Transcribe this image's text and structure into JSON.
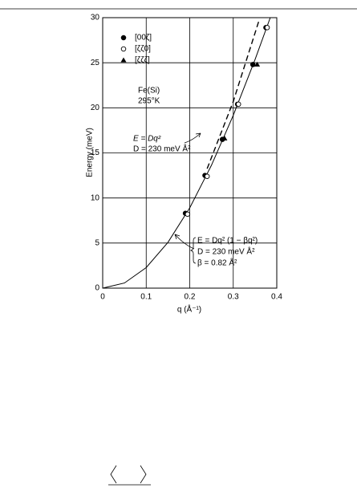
{
  "chart_data": {
    "type": "scatter",
    "xlabel": "q (Å⁻¹)",
    "ylabel": "Energy (meV)",
    "xlim": [
      0,
      0.4
    ],
    "ylim": [
      0,
      30
    ],
    "xticks": [
      0,
      0.1,
      0.2,
      0.3,
      0.4
    ],
    "yticks": [
      0,
      5,
      10,
      15,
      20,
      25,
      30
    ],
    "grid": true,
    "color": "#000000",
    "series": [
      {
        "name": "[00ζ]",
        "marker": "filled-circle",
        "x": [
          0.19,
          0.235,
          0.275,
          0.31,
          0.345,
          0.375
        ],
        "values": [
          8.3,
          12.5,
          16.5,
          20.4,
          24.8,
          28.9
        ]
      },
      {
        "name": "[ζζ0]",
        "marker": "open-circle",
        "x": [
          0.195,
          0.24,
          0.312,
          0.378
        ],
        "values": [
          8.2,
          12.4,
          20.4,
          28.9
        ]
      },
      {
        "name": "[ζζζ]",
        "marker": "triangle",
        "x": [
          0.28,
          0.355
        ],
        "values": [
          16.6,
          24.8
        ]
      }
    ],
    "curves": [
      {
        "style": "solid",
        "x": [
          0,
          0.05,
          0.1,
          0.15,
          0.2,
          0.25,
          0.3,
          0.35,
          0.385
        ],
        "values": [
          0,
          0.57,
          2.28,
          5.08,
          8.9,
          13.64,
          19.17,
          25.34,
          30
        ]
      },
      {
        "style": "dashed",
        "x": [
          0.24,
          0.3,
          0.36
        ],
        "values": [
          13.25,
          20.7,
          29.81
        ]
      }
    ],
    "annotations": [
      "Fe(Si)",
      "295°K",
      "E = Dq²",
      "D = 230 meV Å²",
      "E = Dq² (1 − βq²)",
      "D = 230 meV Å²",
      "β = 0.82 Å²"
    ]
  }
}
